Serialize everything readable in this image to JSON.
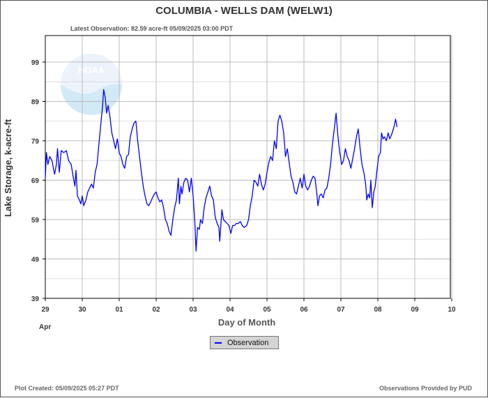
{
  "header": {
    "title": "COLUMBIA - WELLS DAM  (WELW1)",
    "latest_observation": "Latest Observation:  82.59 acre-ft 05/09/2025 03:00 PDT"
  },
  "footer": {
    "plot_created": "Plot Created:  05/09/2025 05:27 PDT",
    "provider": "Observations Provided by PUD"
  },
  "chart_data": {
    "type": "line",
    "ylabel": "Lake Storage, k-acre-ft",
    "xlabel": "Day of Month",
    "month_label": "Apr",
    "ylim": [
      39,
      99
    ],
    "yticks": [
      39,
      49,
      59,
      69,
      79,
      89,
      99
    ],
    "x_tick_labels": [
      "29",
      "30",
      "01",
      "02",
      "03",
      "04",
      "05",
      "06",
      "07",
      "08",
      "09",
      "10"
    ],
    "latest_observation_day": 11.15,
    "legend": "Observation",
    "series": [
      {
        "name": "Observation",
        "color": "#0000ff",
        "points": [
          [
            0.0,
            69.5
          ],
          [
            0.03,
            76.0
          ],
          [
            0.07,
            73.0
          ],
          [
            0.12,
            75.0
          ],
          [
            0.18,
            74.0
          ],
          [
            0.25,
            70.5
          ],
          [
            0.3,
            73.0
          ],
          [
            0.33,
            77.0
          ],
          [
            0.38,
            71.0
          ],
          [
            0.43,
            76.5
          ],
          [
            0.5,
            76.0
          ],
          [
            0.57,
            76.5
          ],
          [
            0.63,
            74.0
          ],
          [
            0.7,
            73.0
          ],
          [
            0.75,
            70.0
          ],
          [
            0.8,
            67.5
          ],
          [
            0.83,
            71.5
          ],
          [
            0.87,
            65.0
          ],
          [
            0.92,
            64.0
          ],
          [
            0.96,
            63.0
          ],
          [
            1.0,
            65.0
          ],
          [
            1.04,
            62.5
          ],
          [
            1.1,
            64.0
          ],
          [
            1.15,
            66.0
          ],
          [
            1.2,
            67.0
          ],
          [
            1.25,
            68.0
          ],
          [
            1.3,
            67.0
          ],
          [
            1.35,
            71.0
          ],
          [
            1.4,
            73.0
          ],
          [
            1.45,
            78.0
          ],
          [
            1.5,
            83.0
          ],
          [
            1.55,
            88.0
          ],
          [
            1.58,
            92.0
          ],
          [
            1.62,
            90.0
          ],
          [
            1.66,
            86.0
          ],
          [
            1.7,
            88.0
          ],
          [
            1.75,
            85.0
          ],
          [
            1.8,
            81.0
          ],
          [
            1.85,
            79.0
          ],
          [
            1.9,
            77.0
          ],
          [
            1.95,
            79.5
          ],
          [
            2.0,
            76.0
          ],
          [
            2.05,
            75.0
          ],
          [
            2.1,
            73.0
          ],
          [
            2.15,
            72.0
          ],
          [
            2.2,
            75.0
          ],
          [
            2.25,
            75.5
          ],
          [
            2.3,
            80.0
          ],
          [
            2.35,
            82.0
          ],
          [
            2.4,
            83.5
          ],
          [
            2.45,
            84.0
          ],
          [
            2.5,
            79.0
          ],
          [
            2.55,
            75.0
          ],
          [
            2.6,
            71.0
          ],
          [
            2.65,
            67.5
          ],
          [
            2.7,
            65.0
          ],
          [
            2.75,
            63.0
          ],
          [
            2.8,
            62.5
          ],
          [
            2.85,
            63.5
          ],
          [
            2.9,
            64.5
          ],
          [
            2.95,
            65.5
          ],
          [
            3.0,
            66.0
          ],
          [
            3.05,
            64.5
          ],
          [
            3.1,
            63.5
          ],
          [
            3.15,
            64.0
          ],
          [
            3.2,
            62.0
          ],
          [
            3.25,
            59.0
          ],
          [
            3.3,
            58.0
          ],
          [
            3.35,
            56.0
          ],
          [
            3.4,
            55.0
          ],
          [
            3.45,
            59.0
          ],
          [
            3.5,
            62.0
          ],
          [
            3.55,
            64.0
          ],
          [
            3.6,
            69.5
          ],
          [
            3.63,
            63.0
          ],
          [
            3.67,
            67.5
          ],
          [
            3.7,
            65.5
          ],
          [
            3.75,
            68.5
          ],
          [
            3.8,
            69.5
          ],
          [
            3.85,
            69.0
          ],
          [
            3.9,
            66.0
          ],
          [
            3.95,
            69.5
          ],
          [
            4.0,
            65.0
          ],
          [
            4.05,
            58.0
          ],
          [
            4.08,
            51.0
          ],
          [
            4.12,
            57.0
          ],
          [
            4.17,
            56.5
          ],
          [
            4.2,
            59.0
          ],
          [
            4.25,
            58.0
          ],
          [
            4.3,
            62.0
          ],
          [
            4.35,
            64.5
          ],
          [
            4.4,
            66.0
          ],
          [
            4.45,
            67.5
          ],
          [
            4.5,
            65.0
          ],
          [
            4.55,
            64.0
          ],
          [
            4.6,
            59.5
          ],
          [
            4.65,
            58.0
          ],
          [
            4.7,
            57.0
          ],
          [
            4.72,
            53.5
          ],
          [
            4.75,
            57.5
          ],
          [
            4.78,
            61.5
          ],
          [
            4.82,
            59.0
          ],
          [
            4.87,
            58.5
          ],
          [
            4.92,
            58.0
          ],
          [
            4.97,
            57.5
          ],
          [
            5.02,
            55.5
          ],
          [
            5.07,
            57.5
          ],
          [
            5.12,
            57.5
          ],
          [
            5.17,
            58.0
          ],
          [
            5.22,
            58.0
          ],
          [
            5.28,
            58.5
          ],
          [
            5.33,
            57.5
          ],
          [
            5.38,
            57.0
          ],
          [
            5.45,
            57.5
          ],
          [
            5.5,
            59.0
          ],
          [
            5.55,
            62.5
          ],
          [
            5.6,
            65.0
          ],
          [
            5.65,
            69.0
          ],
          [
            5.7,
            68.5
          ],
          [
            5.75,
            67.5
          ],
          [
            5.8,
            70.5
          ],
          [
            5.85,
            68.0
          ],
          [
            5.9,
            66.5
          ],
          [
            5.95,
            68.0
          ],
          [
            6.0,
            71.0
          ],
          [
            6.05,
            73.5
          ],
          [
            6.1,
            75.0
          ],
          [
            6.15,
            74.0
          ],
          [
            6.2,
            79.0
          ],
          [
            6.25,
            77.0
          ],
          [
            6.3,
            84.0
          ],
          [
            6.35,
            85.5
          ],
          [
            6.4,
            84.0
          ],
          [
            6.45,
            81.0
          ],
          [
            6.5,
            75.0
          ],
          [
            6.55,
            77.0
          ],
          [
            6.6,
            73.5
          ],
          [
            6.65,
            70.0
          ],
          [
            6.7,
            68.5
          ],
          [
            6.75,
            66.0
          ],
          [
            6.8,
            65.5
          ],
          [
            6.85,
            67.5
          ],
          [
            6.9,
            69.5
          ],
          [
            6.95,
            67.0
          ],
          [
            7.0,
            70.5
          ],
          [
            7.05,
            67.5
          ],
          [
            7.1,
            66.5
          ],
          [
            7.15,
            67.5
          ],
          [
            7.2,
            69.0
          ],
          [
            7.25,
            70.0
          ],
          [
            7.3,
            69.5
          ],
          [
            7.35,
            65.5
          ],
          [
            7.38,
            62.5
          ],
          [
            7.42,
            65.0
          ],
          [
            7.47,
            65.5
          ],
          [
            7.52,
            64.5
          ],
          [
            7.57,
            66.5
          ],
          [
            7.62,
            67.0
          ],
          [
            7.67,
            69.5
          ],
          [
            7.72,
            73.0
          ],
          [
            7.77,
            78.0
          ],
          [
            7.82,
            82.0
          ],
          [
            7.87,
            86.0
          ],
          [
            7.92,
            80.0
          ],
          [
            7.97,
            76.0
          ],
          [
            8.02,
            73.0
          ],
          [
            8.07,
            74.0
          ],
          [
            8.12,
            77.0
          ],
          [
            8.17,
            75.0
          ],
          [
            8.22,
            74.0
          ],
          [
            8.27,
            72.0
          ],
          [
            8.32,
            74.5
          ],
          [
            8.37,
            77.0
          ],
          [
            8.42,
            80.0
          ],
          [
            8.47,
            82.0
          ],
          [
            8.52,
            77.0
          ],
          [
            8.57,
            73.0
          ],
          [
            8.62,
            71.0
          ],
          [
            8.67,
            68.0
          ],
          [
            8.7,
            64.0
          ],
          [
            8.74,
            65.5
          ],
          [
            8.78,
            64.5
          ],
          [
            8.81,
            69.0
          ],
          [
            8.85,
            62.0
          ],
          [
            8.89,
            66.0
          ],
          [
            8.93,
            67.5
          ],
          [
            8.97,
            71.0
          ],
          [
            9.02,
            75.0
          ],
          [
            9.07,
            76.0
          ],
          [
            9.1,
            81.0
          ],
          [
            9.14,
            79.5
          ],
          [
            9.18,
            80.0
          ],
          [
            9.23,
            79.0
          ],
          [
            9.28,
            81.0
          ],
          [
            9.32,
            79.5
          ],
          [
            9.37,
            80.5
          ],
          [
            9.42,
            82.0
          ],
          [
            9.45,
            83.0
          ],
          [
            9.48,
            84.5
          ],
          [
            9.52,
            82.5
          ]
        ]
      }
    ]
  }
}
